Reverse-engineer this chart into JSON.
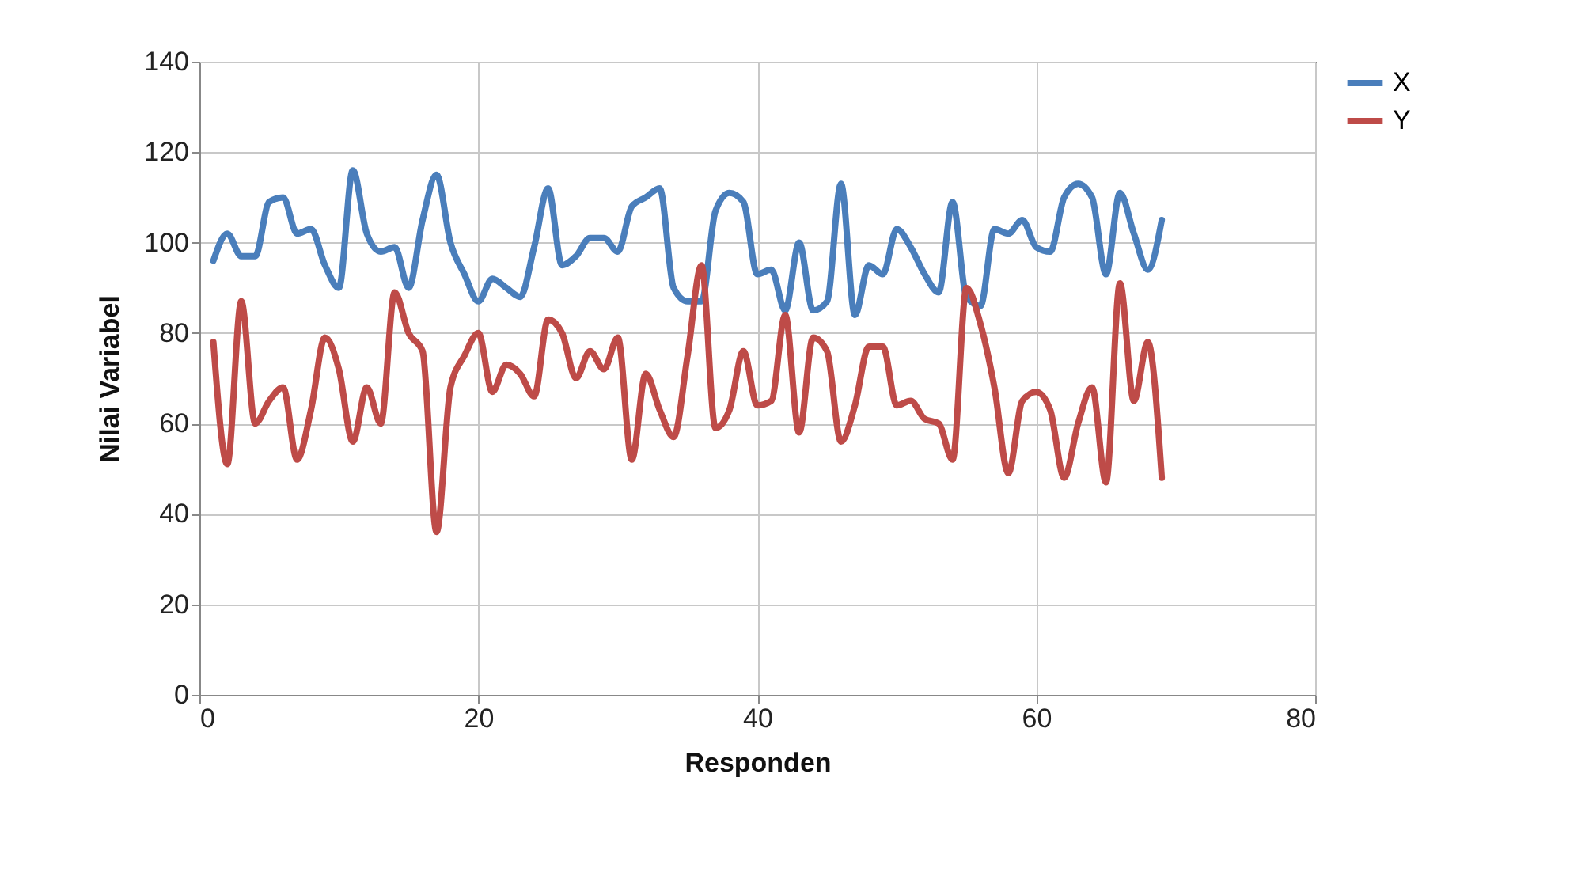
{
  "chart_data": {
    "type": "line",
    "xlabel": "Responden",
    "ylabel": "Nilai Variabel",
    "x": [
      1,
      2,
      3,
      4,
      5,
      6,
      7,
      8,
      9,
      10,
      11,
      12,
      13,
      14,
      15,
      16,
      17,
      18,
      19,
      20,
      21,
      22,
      23,
      24,
      25,
      26,
      27,
      28,
      29,
      30,
      31,
      32,
      33,
      34,
      35,
      36,
      37,
      38,
      39,
      40,
      41,
      42,
      43,
      44,
      45,
      46,
      47,
      48,
      49,
      50,
      51,
      52,
      53,
      54,
      55,
      56,
      57,
      58,
      59,
      60,
      61,
      62,
      63,
      64,
      65,
      66,
      67,
      68,
      69
    ],
    "series": [
      {
        "name": "X",
        "color": "#4a7ebb",
        "values": [
          96,
          102,
          97,
          97,
          109,
          110,
          102,
          103,
          95,
          90,
          116,
          102,
          98,
          99,
          90,
          105,
          115,
          100,
          93,
          87,
          92,
          90,
          88,
          99,
          112,
          95,
          97,
          101,
          101,
          98,
          108,
          110,
          112,
          90,
          87,
          87,
          107,
          111,
          109,
          93,
          94,
          85,
          100,
          85,
          87,
          113,
          84,
          95,
          93,
          103,
          99,
          93,
          89,
          109,
          88,
          86,
          103,
          102,
          105,
          99,
          98,
          110,
          113,
          110,
          93,
          111,
          102,
          94,
          105
        ]
      },
      {
        "name": "Y",
        "color": "#be4b48",
        "values": [
          78,
          51,
          87,
          60,
          65,
          68,
          52,
          63,
          79,
          72,
          56,
          68,
          60,
          89,
          80,
          76,
          36,
          68,
          75,
          80,
          67,
          73,
          71,
          66,
          83,
          80,
          70,
          76,
          72,
          79,
          52,
          71,
          63,
          57,
          75,
          95,
          59,
          63,
          76,
          64,
          65,
          84,
          58,
          79,
          76,
          56,
          64,
          77,
          77,
          64,
          65,
          61,
          60,
          52,
          90,
          82,
          68,
          49,
          65,
          67,
          63,
          48,
          60,
          68,
          47,
          91,
          65,
          78,
          48
        ]
      }
    ],
    "xlim": [
      0,
      80
    ],
    "xticks": [
      0,
      20,
      40,
      60,
      80
    ],
    "ylim": [
      0,
      140
    ],
    "yticks": [
      0,
      20,
      40,
      60,
      80,
      100,
      120,
      140
    ],
    "grid": true,
    "legend": "right",
    "marker": "none",
    "line_style": "solid"
  }
}
